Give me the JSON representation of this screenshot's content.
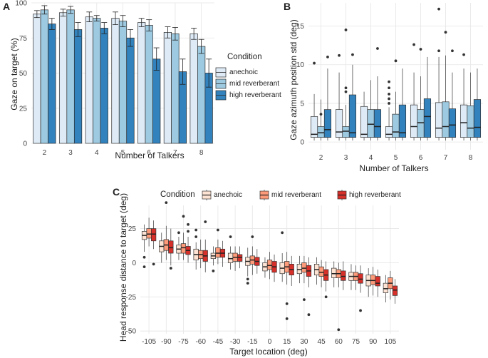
{
  "colors": {
    "anechoic_blue": "#deebf7",
    "mid_blue": "#9ecae1",
    "high_blue": "#3182bd",
    "anechoic_red": "#fde3d3",
    "mid_red": "#fc9a79",
    "high_red": "#d7302a",
    "grid": "#e5e5e5"
  },
  "chart_data": [
    {
      "panel": "A",
      "type": "bar",
      "xlabel": "Number of Talkers",
      "ylabel": "Gaze on target (%)",
      "ylim": [
        0,
        100
      ],
      "yticks": [
        "0",
        "25",
        "50",
        "75",
        "100"
      ],
      "categories": [
        "2",
        "3",
        "4",
        "5",
        "6",
        "7",
        "8"
      ],
      "legend": {
        "title": "Condition",
        "position": "right",
        "labels": [
          "anechoic",
          "mid reverberant",
          "high reverberant"
        ]
      },
      "series": [
        {
          "name": "anechoic",
          "values": [
            92,
            93,
            90,
            89,
            86,
            79,
            78
          ],
          "error": [
            2.5,
            2.5,
            3.5,
            4.5,
            3,
            4,
            4
          ]
        },
        {
          "name": "mid reverberant",
          "values": [
            95,
            95,
            89,
            87,
            84,
            78,
            69
          ],
          "error": [
            3,
            2.5,
            2,
            4,
            4,
            4.5,
            5
          ]
        },
        {
          "name": "high reverberant",
          "values": [
            85,
            81,
            82,
            75,
            60,
            51,
            50
          ],
          "error": [
            4,
            5,
            4,
            6,
            8,
            9,
            10
          ]
        }
      ]
    },
    {
      "panel": "B",
      "type": "box",
      "xlabel": "Number of Talkers",
      "ylabel": "Gaze azimuth position std  (deg)",
      "ylim": [
        -1,
        18
      ],
      "yticks": [
        "0",
        "5",
        "10",
        "15"
      ],
      "categories": [
        "2",
        "3",
        "4",
        "5",
        "6",
        "7",
        "8"
      ],
      "series_names": [
        "anechoic",
        "mid reverberant",
        "high reverberant"
      ],
      "groups": [
        {
          "boxes": [
            {
              "q1": 0.6,
              "median": 1.0,
              "q3": 3.3,
              "whislo": 0.2,
              "whishi": 6.2,
              "outliers": [
                10.2
              ]
            },
            {
              "q1": 0.6,
              "median": 1.2,
              "q3": 2.0,
              "whislo": 0.2,
              "whishi": 5.5,
              "outliers": [
                3.6
              ]
            },
            {
              "q1": 0.6,
              "median": 1.6,
              "q3": 4.2,
              "whislo": 0.2,
              "whishi": 9.5,
              "outliers": [
                11.0
              ]
            }
          ]
        },
        {
          "boxes": [
            {
              "q1": 0.6,
              "median": 1.3,
              "q3": 4.2,
              "whislo": 0.2,
              "whishi": 9.0,
              "outliers": [
                11.2
              ]
            },
            {
              "q1": 0.6,
              "median": 1.4,
              "q3": 2.0,
              "whislo": 0.2,
              "whishi": 4.8,
              "outliers": [
                6.5,
                7.0,
                14.5
              ]
            },
            {
              "q1": 0.6,
              "median": 1.2,
              "q3": 6.1,
              "whislo": 0.2,
              "whishi": 10.0,
              "outliers": [
                11.3
              ]
            }
          ]
        },
        {
          "boxes": [
            {
              "q1": 0.6,
              "median": 1.0,
              "q3": 4.6,
              "whislo": 0.2,
              "whishi": 6.5,
              "outliers": []
            },
            {
              "q1": 0.6,
              "median": 2.3,
              "q3": 4.2,
              "whislo": 0.2,
              "whishi": 8.0,
              "outliers": []
            },
            {
              "q1": 0.6,
              "median": 2.0,
              "q3": 4.2,
              "whislo": 0.2,
              "whishi": 8.5,
              "outliers": [
                12.1
              ]
            }
          ]
        },
        {
          "boxes": [
            {
              "q1": 0.6,
              "median": 1.0,
              "q3": 2.0,
              "whislo": 0.2,
              "whishi": 4.5,
              "outliers": [
                5.0,
                5.6,
                6.2,
                7.0,
                7.8
              ]
            },
            {
              "q1": 0.6,
              "median": 1.3,
              "q3": 3.6,
              "whislo": 0.2,
              "whishi": 6.5,
              "outliers": [
                10.5
              ]
            },
            {
              "q1": 0.6,
              "median": 1.2,
              "q3": 4.8,
              "whislo": 0.2,
              "whishi": 9.5,
              "outliers": []
            }
          ]
        },
        {
          "boxes": [
            {
              "q1": 0.6,
              "median": 2.0,
              "q3": 4.8,
              "whislo": 0.2,
              "whishi": 9.0,
              "outliers": [
                12.6
              ]
            },
            {
              "q1": 0.6,
              "median": 2.5,
              "q3": 4.2,
              "whislo": 0.2,
              "whishi": 8.5,
              "outliers": [
                12.0
              ]
            },
            {
              "q1": 0.6,
              "median": 3.3,
              "q3": 5.6,
              "whislo": 0.2,
              "whishi": 11.0,
              "outliers": []
            }
          ]
        },
        {
          "boxes": [
            {
              "q1": 0.6,
              "median": 1.8,
              "q3": 5.1,
              "whislo": 0.2,
              "whishi": 11.0,
              "outliers": [
                11.8,
                17.2
              ]
            },
            {
              "q1": 0.6,
              "median": 2.0,
              "q3": 5.2,
              "whislo": 0.2,
              "whishi": 11.2,
              "outliers": [
                14.2
              ]
            },
            {
              "q1": 0.6,
              "median": 2.2,
              "q3": 4.3,
              "whislo": 0.2,
              "whishi": 9.0,
              "outliers": [
                11.8
              ]
            }
          ]
        },
        {
          "boxes": [
            {
              "q1": 0.6,
              "median": 2.5,
              "q3": 4.8,
              "whislo": 0.2,
              "whishi": 9.5,
              "outliers": [
                11.3
              ]
            },
            {
              "q1": 0.6,
              "median": 1.8,
              "q3": 4.7,
              "whislo": 0.2,
              "whishi": 9.0,
              "outliers": []
            },
            {
              "q1": 0.6,
              "median": 1.9,
              "q3": 5.5,
              "whislo": 0.2,
              "whishi": 9.5,
              "outliers": []
            }
          ]
        }
      ]
    },
    {
      "panel": "C",
      "type": "box",
      "xlabel": "Target location (deg)",
      "ylabel": "Head response distance to target (deg)",
      "ylim": [
        -52,
        42
      ],
      "yticks": [
        "25",
        "0",
        "-25",
        "-50"
      ],
      "categories": [
        "-105",
        "-90",
        "-75",
        "-60",
        "-45",
        "-30",
        "-15",
        "0",
        "15",
        "30",
        "45",
        "60",
        "75",
        "90",
        "105"
      ],
      "series_names": [
        "anechoic",
        "mid reverberant",
        "high reverberant"
      ],
      "legend": {
        "title": "Condition",
        "position": "top",
        "labels": [
          "anechoic",
          "mid reverberant",
          "high reverberant"
        ]
      },
      "groups": [
        {
          "boxes": [
            {
              "q1": 17,
              "median": 20,
              "q3": 23,
              "whislo": 8,
              "whishi": 28,
              "outliers": [
                4,
                -3
              ]
            },
            {
              "q1": 18,
              "median": 21,
              "q3": 25,
              "whislo": 12,
              "whishi": 33,
              "outliers": []
            },
            {
              "q1": 16,
              "median": 21,
              "q3": 25,
              "whislo": 10,
              "whishi": 31,
              "outliers": [
                -1
              ]
            }
          ]
        },
        {
          "boxes": [
            {
              "q1": 8,
              "median": 12,
              "q3": 16,
              "whislo": 0,
              "whishi": 22,
              "outliers": []
            },
            {
              "q1": 9,
              "median": 13,
              "q3": 17,
              "whislo": 2,
              "whishi": 27,
              "outliers": [
                44
              ]
            },
            {
              "q1": 7,
              "median": 11,
              "q3": 16,
              "whislo": -2,
              "whishi": 25,
              "outliers": [
                -4
              ]
            }
          ]
        },
        {
          "boxes": [
            {
              "q1": 7,
              "median": 10,
              "q3": 13,
              "whislo": 2,
              "whishi": 19,
              "outliers": [
                22
              ]
            },
            {
              "q1": 7,
              "median": 11,
              "q3": 14,
              "whislo": 2,
              "whishi": 22,
              "outliers": [
                34
              ]
            },
            {
              "q1": 6,
              "median": 9,
              "q3": 12,
              "whislo": 0,
              "whishi": 19,
              "outliers": [
                28,
                23
              ]
            }
          ]
        },
        {
          "boxes": [
            {
              "q1": 2,
              "median": 6,
              "q3": 10,
              "whislo": -5,
              "whishi": 15,
              "outliers": [
                24,
                19
              ]
            },
            {
              "q1": 3,
              "median": 6,
              "q3": 9,
              "whislo": -4,
              "whishi": 17,
              "outliers": []
            },
            {
              "q1": 1,
              "median": 5,
              "q3": 9,
              "whislo": -7,
              "whishi": 17,
              "outliers": [
                30
              ]
            }
          ]
        },
        {
          "boxes": [
            {
              "q1": 3,
              "median": 5,
              "q3": 7,
              "whislo": -2,
              "whishi": 12,
              "outliers": [
                -6
              ]
            },
            {
              "q1": 4,
              "median": 7,
              "q3": 11,
              "whislo": -1,
              "whishi": 17,
              "outliers": [
                24
              ]
            },
            {
              "q1": 4,
              "median": 7,
              "q3": 10,
              "whislo": -3,
              "whishi": 16,
              "outliers": []
            }
          ]
        },
        {
          "boxes": [
            {
              "q1": 0,
              "median": 3,
              "q3": 7,
              "whislo": -5,
              "whishi": 12,
              "outliers": [
                19
              ]
            },
            {
              "q1": 1,
              "median": 4,
              "q3": 7,
              "whislo": -6,
              "whishi": 12,
              "outliers": []
            },
            {
              "q1": 1,
              "median": 4,
              "q3": 6,
              "whislo": -4,
              "whishi": 12,
              "outliers": []
            }
          ]
        },
        {
          "boxes": [
            {
              "q1": -2,
              "median": 1,
              "q3": 4,
              "whislo": -10,
              "whishi": 11,
              "outliers": [
                -12,
                -15
              ]
            },
            {
              "q1": -1,
              "median": 2,
              "q3": 5,
              "whislo": -9,
              "whishi": 12,
              "outliers": [
                19
              ]
            },
            {
              "q1": -2,
              "median": 1,
              "q3": 4,
              "whislo": -8,
              "whishi": 10,
              "outliers": []
            }
          ]
        },
        {
          "boxes": [
            {
              "q1": -6,
              "median": -3,
              "q3": 0,
              "whislo": -11,
              "whishi": 4,
              "outliers": []
            },
            {
              "q1": -5,
              "median": -2,
              "q3": 2,
              "whislo": -12,
              "whishi": 8,
              "outliers": []
            },
            {
              "q1": -7,
              "median": -3,
              "q3": 1,
              "whislo": -14,
              "whishi": 6,
              "outliers": []
            }
          ]
        },
        {
          "boxes": [
            {
              "q1": -8,
              "median": -4,
              "q3": 0,
              "whislo": -14,
              "whishi": 7,
              "outliers": [
                22
              ]
            },
            {
              "q1": -7,
              "median": -3,
              "q3": 1,
              "whislo": -16,
              "whishi": 8,
              "outliers": [
                -30,
                -41
              ]
            },
            {
              "q1": -9,
              "median": -5,
              "q3": -1,
              "whislo": -17,
              "whishi": 5,
              "outliers": []
            }
          ]
        },
        {
          "boxes": [
            {
              "q1": -8,
              "median": -5,
              "q3": -1,
              "whislo": -15,
              "whishi": 5,
              "outliers": []
            },
            {
              "q1": -7,
              "median": -4,
              "q3": 0,
              "whislo": -15,
              "whishi": 5,
              "outliers": [
                -27
              ]
            },
            {
              "q1": -10,
              "median": -6,
              "q3": -2,
              "whislo": -18,
              "whishi": 4,
              "outliers": [
                -38
              ]
            }
          ]
        },
        {
          "boxes": [
            {
              "q1": -9,
              "median": -5,
              "q3": -1,
              "whislo": -16,
              "whishi": 4,
              "outliers": []
            },
            {
              "q1": -10,
              "median": -7,
              "q3": -3,
              "whislo": -18,
              "whishi": 2,
              "outliers": []
            },
            {
              "q1": -13,
              "median": -9,
              "q3": -5,
              "whislo": -21,
              "whishi": 1,
              "outliers": [
                -25
              ]
            }
          ]
        },
        {
          "boxes": [
            {
              "q1": -11,
              "median": -8,
              "q3": -4,
              "whislo": -18,
              "whishi": 1,
              "outliers": []
            },
            {
              "q1": -11,
              "median": -8,
              "q3": -5,
              "whislo": -18,
              "whishi": 0,
              "outliers": [
                -49
              ]
            },
            {
              "q1": -13,
              "median": -10,
              "q3": -6,
              "whislo": -20,
              "whishi": 1,
              "outliers": []
            }
          ]
        },
        {
          "boxes": [
            {
              "q1": -13,
              "median": -10,
              "q3": -7,
              "whislo": -20,
              "whishi": -1,
              "outliers": []
            },
            {
              "q1": -13,
              "median": -10,
              "q3": -7,
              "whislo": -20,
              "whishi": -2,
              "outliers": []
            },
            {
              "q1": -15,
              "median": -12,
              "q3": -8,
              "whislo": -22,
              "whishi": -2,
              "outliers": [
                -35
              ]
            }
          ]
        },
        {
          "boxes": [
            {
              "q1": -17,
              "median": -13,
              "q3": -9,
              "whislo": -25,
              "whishi": -4,
              "outliers": []
            },
            {
              "q1": -16,
              "median": -13,
              "q3": -9,
              "whislo": -24,
              "whishi": -3,
              "outliers": []
            },
            {
              "q1": -17,
              "median": -15,
              "q3": -10,
              "whislo": -25,
              "whishi": -5,
              "outliers": []
            }
          ]
        },
        {
          "boxes": [
            {
              "q1": -22,
              "median": -19,
              "q3": -15,
              "whislo": -29,
              "whishi": -9,
              "outliers": []
            },
            {
              "q1": -19,
              "median": -15,
              "q3": -11,
              "whislo": -27,
              "whishi": -6,
              "outliers": []
            },
            {
              "q1": -24,
              "median": -20,
              "q3": -17,
              "whislo": -30,
              "whishi": -12,
              "outliers": []
            }
          ]
        }
      ]
    }
  ]
}
